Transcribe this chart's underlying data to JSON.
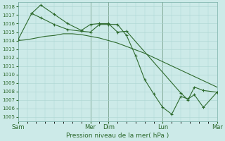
{
  "title": "Pression niveau de la mer( hPa )",
  "background_color": "#cceae8",
  "grid_color": "#aad4d0",
  "line_color": "#2d6a2d",
  "ylim": [
    1004.5,
    1018.5
  ],
  "yticks": [
    1005,
    1006,
    1007,
    1008,
    1009,
    1010,
    1011,
    1012,
    1013,
    1014,
    1015,
    1016,
    1017,
    1018
  ],
  "vline_color": "#557755",
  "series1_x": [
    0,
    1,
    2,
    3,
    4,
    5,
    6,
    7,
    8,
    9,
    10,
    11,
    12,
    13,
    14,
    15,
    16,
    17,
    18,
    19,
    20,
    21,
    22
  ],
  "series1_y": [
    1014.0,
    1014.1,
    1014.3,
    1014.5,
    1014.6,
    1014.8,
    1014.8,
    1014.7,
    1014.5,
    1014.3,
    1014.0,
    1013.7,
    1013.3,
    1012.9,
    1012.5,
    1012.0,
    1011.5,
    1011.0,
    1010.5,
    1010.0,
    1009.5,
    1009.0,
    1008.5
  ],
  "series2_x": [
    0,
    1.5,
    2.5,
    4.0,
    5.5,
    7.0,
    8.0,
    9.0,
    10.0,
    11.0,
    12.0,
    13.0,
    14.0,
    15.0,
    16.0,
    17.0,
    18.0,
    18.8,
    19.5,
    20.5,
    22.0
  ],
  "series2_y": [
    1014.1,
    1017.2,
    1016.7,
    1015.9,
    1015.3,
    1015.1,
    1015.0,
    1015.9,
    1015.9,
    1015.9,
    1014.6,
    1012.2,
    1009.4,
    1007.7,
    1006.1,
    1005.3,
    1007.4,
    1007.1,
    1007.6,
    1006.1,
    1007.9
  ],
  "series3_x": [
    1.5,
    2.5,
    4.0,
    5.5,
    7.0,
    8.0,
    9.0,
    10.0,
    11.0,
    12.0,
    18.0,
    18.8,
    19.5,
    20.5,
    22.0
  ],
  "series3_y": [
    1017.2,
    1018.2,
    1017.1,
    1016.0,
    1015.2,
    1015.9,
    1016.0,
    1016.0,
    1015.0,
    1015.1,
    1007.8,
    1007.0,
    1008.5,
    1008.1,
    1007.9
  ],
  "xtick_positions": [
    0,
    8,
    10,
    16,
    22
  ],
  "xtick_labels": [
    "Sam",
    "Mer",
    "Dim",
    "Lun",
    "Mar"
  ],
  "vline_positions": [
    0,
    8,
    10,
    16,
    22
  ],
  "xlim": [
    0,
    22
  ]
}
